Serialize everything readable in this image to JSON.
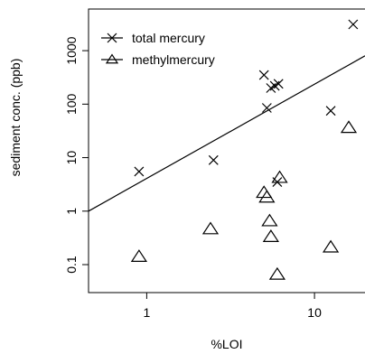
{
  "chart_data": {
    "type": "scatter",
    "xlabel": "%LOI",
    "ylabel": "sediment conc. (ppb)",
    "x_scale": "log",
    "y_scale": "log",
    "xlim": [
      0.45,
      20
    ],
    "ylim": [
      0.03,
      6000
    ],
    "x_ticks": [
      1,
      10
    ],
    "x_tick_labels": [
      "1",
      "10"
    ],
    "y_ticks": [
      0.1,
      1,
      10,
      100,
      1000
    ],
    "y_tick_labels": [
      "0.1",
      "1",
      "10",
      "100",
      "1000"
    ],
    "grid": false,
    "legend": {
      "position": "top-left",
      "entries": [
        {
          "label": "total mercury",
          "marker": "x",
          "line": true
        },
        {
          "label": "methylmercury",
          "marker": "triangle",
          "line": true
        }
      ]
    },
    "series": [
      {
        "name": "total mercury",
        "marker": "x",
        "points": [
          {
            "x": 0.9,
            "y": 5.5
          },
          {
            "x": 2.5,
            "y": 9
          },
          {
            "x": 5.0,
            "y": 350
          },
          {
            "x": 5.2,
            "y": 85
          },
          {
            "x": 5.5,
            "y": 200
          },
          {
            "x": 5.8,
            "y": 220
          },
          {
            "x": 6.1,
            "y": 240
          },
          {
            "x": 6.0,
            "y": 3.5
          },
          {
            "x": 12.5,
            "y": 75
          },
          {
            "x": 17,
            "y": 3100
          }
        ]
      },
      {
        "name": "methylmercury",
        "marker": "triangle",
        "points": [
          {
            "x": 0.9,
            "y": 0.14
          },
          {
            "x": 2.4,
            "y": 0.46
          },
          {
            "x": 5.0,
            "y": 2.2
          },
          {
            "x": 5.2,
            "y": 1.8
          },
          {
            "x": 5.4,
            "y": 0.65
          },
          {
            "x": 5.5,
            "y": 0.33
          },
          {
            "x": 6.0,
            "y": 0.065
          },
          {
            "x": 6.2,
            "y": 4.2
          },
          {
            "x": 12.5,
            "y": 0.21
          },
          {
            "x": 16,
            "y": 36
          }
        ]
      }
    ],
    "fit_line": {
      "series": "total mercury",
      "from": {
        "x": 0.45,
        "y": 1.0
      },
      "to": {
        "x": 20,
        "y": 800
      }
    }
  }
}
